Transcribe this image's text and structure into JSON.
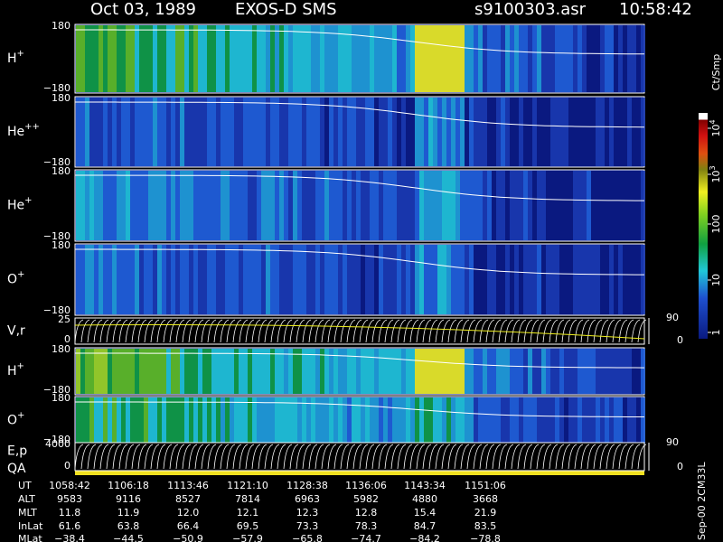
{
  "header": {
    "date": "Oct 03, 1989",
    "instrument": "EXOS-D SMS",
    "file": "s9100303.asr",
    "time": "10:58:42"
  },
  "panels": [
    {
      "label": "H",
      "sup": "+",
      "top": "180",
      "bottom": "−180"
    },
    {
      "label": "He",
      "sup": "++",
      "top": "180",
      "bottom": "−180"
    },
    {
      "label": "He",
      "sup": "+",
      "top": "180",
      "bottom": "−180"
    },
    {
      "label": "O",
      "sup": "+",
      "top": "180",
      "bottom": "−180"
    },
    {
      "label": "V,r",
      "top": "25",
      "bottom": "0",
      "right_top": "90",
      "right_bottom": "0"
    },
    {
      "label": "H",
      "sup": "+",
      "top": "180",
      "bottom": "−180"
    },
    {
      "label": "O",
      "sup": "+",
      "top": "180",
      "bottom": "−180"
    },
    {
      "label": "E,p",
      "label2": "QA",
      "top": "4000",
      "bottom": "0",
      "right_top": "90",
      "right_bottom": "0"
    }
  ],
  "colorbar": {
    "unit": "Ct/Smp",
    "ticks": [
      {
        "base": "10",
        "exp": "4"
      },
      {
        "base": "10",
        "exp": "3"
      },
      {
        "base": "100"
      },
      {
        "base": "10"
      },
      {
        "base": "1"
      }
    ]
  },
  "table": {
    "rows": [
      {
        "label": "UT",
        "values": [
          "1058:42",
          "1106:18",
          "1113:46",
          "1121:10",
          "1128:38",
          "1136:06",
          "1143:34",
          "1151:06"
        ]
      },
      {
        "label": "ALT",
        "values": [
          "9583",
          "9116",
          "8527",
          "7814",
          "6963",
          "5982",
          "4880",
          "3668"
        ]
      },
      {
        "label": "MLT",
        "values": [
          "11.8",
          "11.9",
          "12.0",
          "12.1",
          "12.3",
          "12.8",
          "15.4",
          "21.9"
        ]
      },
      {
        "label": "InLat",
        "values": [
          "61.6",
          "63.8",
          "66.4",
          "69.5",
          "73.3",
          "78.3",
          "84.7",
          "83.5"
        ]
      },
      {
        "label": "MLat",
        "values": [
          "−38.4",
          "−44.5",
          "−50.9",
          "−57.9",
          "−65.8",
          "−74.7",
          "−84.2",
          "−78.8"
        ]
      }
    ]
  },
  "footer": "Sep-00 2CM33L"
}
